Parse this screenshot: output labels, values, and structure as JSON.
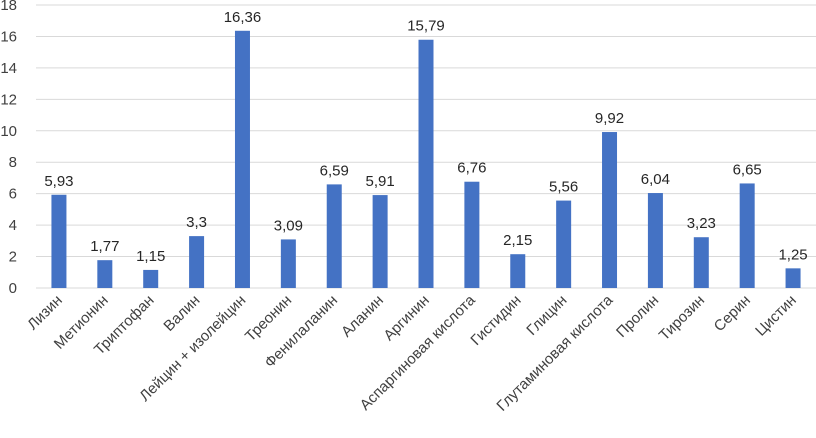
{
  "chart_data": {
    "type": "bar",
    "categories": [
      "Лизин",
      "Метионин",
      "Триптофан",
      "Валин",
      "Лейцин + изолейцин",
      "Треонин",
      "Фенилаланин",
      "Аланин",
      "Аргинин",
      "Аспаргиновая кислота",
      "Гистидин",
      "Глицин",
      "Глутаминовая кислота",
      "Пролин",
      "Тирозин",
      "Серин",
      "Цистин"
    ],
    "values": [
      5.93,
      1.77,
      1.15,
      3.3,
      16.36,
      3.09,
      6.59,
      5.91,
      15.79,
      6.76,
      2.15,
      5.56,
      9.92,
      6.04,
      3.23,
      6.65,
      1.25
    ],
    "data_labels": [
      "5,93",
      "1,77",
      "1,15",
      "3,3",
      "16,36",
      "3,09",
      "6,59",
      "5,91",
      "15,79",
      "6,76",
      "2,15",
      "5,56",
      "9,92",
      "6,04",
      "3,23",
      "6,65",
      "1,25"
    ],
    "yticks": [
      "0",
      "2",
      "4",
      "6",
      "8",
      "10",
      "12",
      "14",
      "16",
      "18"
    ],
    "ylim": [
      0,
      18
    ],
    "grid": true,
    "legend": "none",
    "bar_color": "#4472c4",
    "title": "",
    "xlabel": "",
    "ylabel": ""
  }
}
